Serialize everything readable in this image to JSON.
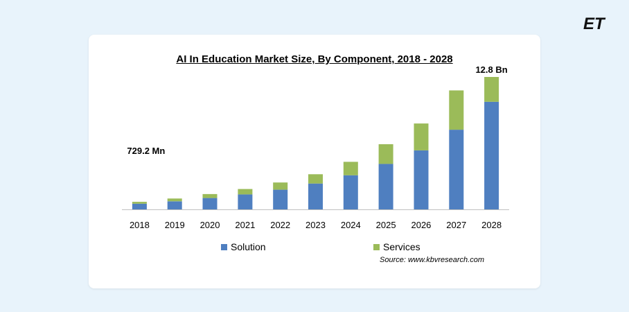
{
  "logo_text": "ET",
  "chart_data": {
    "type": "bar",
    "stacked": true,
    "title": "AI In Education Market Size, By Component, 2018 - 2028",
    "categories": [
      "2018",
      "2019",
      "2020",
      "2021",
      "2022",
      "2023",
      "2024",
      "2025",
      "2026",
      "2027",
      "2028"
    ],
    "series": [
      {
        "name": "Solution",
        "color": "#4f7fc0",
        "values": [
          0.55,
          0.78,
          1.1,
          1.45,
          1.9,
          2.5,
          3.3,
          4.4,
          5.7,
          7.7,
          10.4
        ]
      },
      {
        "name": "Services",
        "color": "#9bbb59",
        "values": [
          0.18,
          0.27,
          0.38,
          0.52,
          0.7,
          0.9,
          1.3,
          1.9,
          2.6,
          3.8,
          2.4
        ]
      }
    ],
    "ylim": [
      0,
      13
    ],
    "annotations": [
      {
        "text": "729.2  Mn",
        "category": "2018"
      },
      {
        "text": "12.8 Bn",
        "category": "2028"
      }
    ],
    "legend_position": "bottom",
    "grid": false
  },
  "source": "Source:  www.kbvresearch.com"
}
